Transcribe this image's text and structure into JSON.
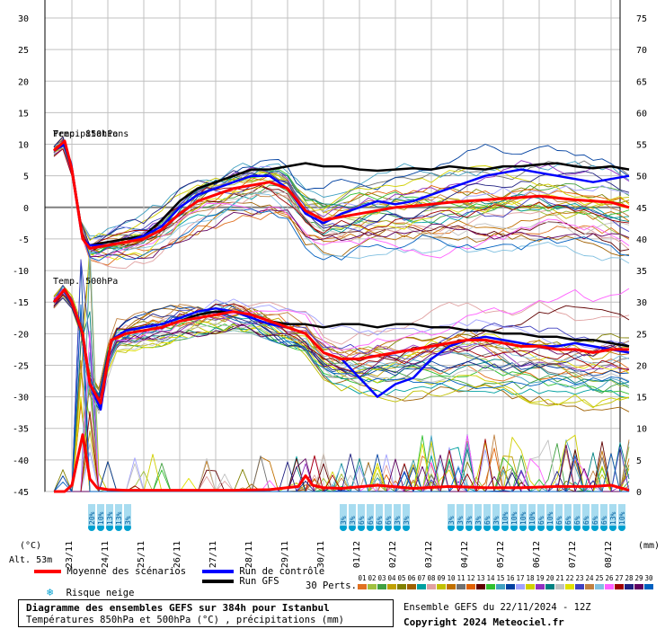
{
  "chart_data": {
    "type": "line",
    "title": "Diagramme des ensembles GEFS sur 384h pour Istanbul",
    "subtitle": "Températures 850hPa et 500hPa (°C) , précipitations (mm)",
    "left_axis": {
      "label": "(°C)",
      "ticks": [
        30,
        25,
        20,
        15,
        10,
        5,
        0,
        -5,
        -10,
        -15,
        -20,
        -25,
        -30,
        -35,
        -40,
        -45
      ],
      "range": [
        -45,
        30
      ]
    },
    "right_axis": {
      "label": "(mm)",
      "ticks": [
        75,
        70,
        65,
        60,
        55,
        50,
        45,
        40,
        35,
        30,
        25,
        20,
        15,
        10,
        5,
        0
      ],
      "range": [
        0,
        75
      ]
    },
    "x_ticks": [
      "23/11",
      "24/11",
      "25/11",
      "26/11",
      "27/11",
      "28/11",
      "29/11",
      "30/11",
      "01/12",
      "02/12",
      "03/12",
      "04/12",
      "05/12",
      "06/12",
      "07/12",
      "08/12"
    ],
    "grid": true,
    "series_labels": {
      "t850": "Temp. 850hPa",
      "t500": "Temp. 500hPa",
      "precip": "Precipitations"
    },
    "mean_850": {
      "x": [
        0,
        0.3,
        0.5,
        0.8,
        1.0,
        1.5,
        2,
        2.5,
        3,
        3.5,
        4,
        4.5,
        5,
        5.5,
        6,
        6.5,
        7,
        7.5,
        8,
        8.5,
        9,
        9.5,
        10,
        10.5,
        11,
        11.5,
        12,
        12.5,
        13,
        13.5,
        14,
        14.5,
        15,
        15.5,
        16
      ],
      "y": [
        9,
        10.5,
        6,
        -5,
        -6.5,
        -6,
        -5.5,
        -5,
        -3.5,
        -1,
        1,
        2,
        3,
        3.5,
        4,
        3,
        -0.5,
        -2,
        -1.5,
        -1,
        -0.5,
        0,
        0.2,
        0.5,
        0.8,
        1,
        1.2,
        1.4,
        1.6,
        1.8,
        1.5,
        1.2,
        1.0,
        0.8,
        0
      ]
    },
    "control_850": {
      "x": [
        0,
        0.3,
        0.5,
        0.8,
        1.0,
        1.5,
        2,
        2.5,
        3,
        3.5,
        4,
        4.5,
        5,
        5.5,
        6,
        6.5,
        7,
        7.5,
        8,
        8.5,
        9,
        9.5,
        10,
        10.5,
        11,
        11.5,
        12,
        12.5,
        13,
        13.5,
        14,
        14.5,
        15,
        15.5,
        16
      ],
      "y": [
        9,
        10,
        6,
        -5,
        -6,
        -6,
        -5.5,
        -4.5,
        -3,
        0,
        2,
        3,
        4,
        5,
        5,
        3,
        -1,
        -2.5,
        -1,
        0,
        1,
        0.5,
        1,
        2,
        3,
        4,
        5,
        5.5,
        6,
        5.5,
        5,
        4.5,
        4,
        4.5,
        5
      ]
    },
    "gfs_850": {
      "x": [
        0,
        0.3,
        0.5,
        0.8,
        1.0,
        1.5,
        2,
        2.5,
        3,
        3.5,
        4,
        4.5,
        5,
        5.5,
        6,
        6.5,
        7,
        7.5,
        8,
        8.5,
        9,
        9.5,
        10,
        10.5,
        11,
        11.5,
        12,
        12.5,
        13,
        13.5,
        14,
        14.5,
        15,
        15.5,
        16
      ],
      "y": [
        9,
        10,
        6,
        -5,
        -6,
        -5.5,
        -5,
        -4.5,
        -2,
        1,
        3,
        4,
        5,
        6,
        6,
        6.5,
        7,
        6.5,
        6.5,
        6,
        5.8,
        6,
        6.2,
        6,
        6.5,
        6.2,
        6,
        6.5,
        6.5,
        6.8,
        7,
        6.5,
        6.2,
        6.5,
        6
      ]
    },
    "mean_500": {
      "x": [
        0,
        0.3,
        0.5,
        0.8,
        1.0,
        1.3,
        1.6,
        2,
        2.5,
        3,
        3.5,
        4,
        4.5,
        5,
        5.5,
        6,
        6.5,
        7,
        7.5,
        8,
        8.5,
        9,
        9.5,
        10,
        10.5,
        11,
        11.5,
        12,
        12.5,
        13,
        13.5,
        14,
        14.5,
        15,
        15.5,
        16
      ],
      "y": [
        -15,
        -13,
        -15,
        -20,
        -28,
        -31,
        -21,
        -20,
        -19.5,
        -19,
        -18,
        -17.5,
        -17,
        -16.5,
        -17,
        -18,
        -19,
        -20,
        -23,
        -24,
        -24,
        -23.5,
        -23,
        -22.5,
        -22,
        -21.5,
        -21,
        -21,
        -21.5,
        -22,
        -22,
        -22.5,
        -22.5,
        -23,
        -22.5,
        -22.5
      ]
    },
    "control_500": {
      "x": [
        0,
        0.3,
        0.5,
        0.8,
        1.0,
        1.3,
        1.6,
        2,
        2.5,
        3,
        3.5,
        4,
        4.5,
        5,
        5.5,
        6,
        6.5,
        7,
        7.5,
        8,
        8.5,
        9,
        9.5,
        10,
        10.5,
        11,
        11.5,
        12,
        12.5,
        13,
        13.5,
        14,
        14.5,
        15,
        15.5,
        16
      ],
      "y": [
        -15,
        -13,
        -15,
        -20,
        -28,
        -32,
        -21,
        -19.5,
        -19,
        -18.5,
        -17.5,
        -16.5,
        -16,
        -16.5,
        -17.5,
        -18.5,
        -19,
        -20,
        -23,
        -24,
        -27,
        -30,
        -28,
        -27,
        -24,
        -22,
        -21,
        -20.5,
        -21,
        -21.5,
        -22,
        -22,
        -21.5,
        -22,
        -22.5,
        -23
      ]
    },
    "gfs_500": {
      "x": [
        0,
        0.3,
        0.5,
        0.8,
        1.0,
        1.3,
        1.6,
        2,
        2.5,
        3,
        3.5,
        4,
        4.5,
        5,
        5.5,
        6,
        6.5,
        7,
        7.5,
        8,
        8.5,
        9,
        9.5,
        10,
        10.5,
        11,
        11.5,
        12,
        12.5,
        13,
        13.5,
        14,
        14.5,
        15,
        15.5,
        16
      ],
      "y": [
        -15,
        -13,
        -15,
        -20,
        -28,
        -31,
        -21,
        -20,
        -19.5,
        -19,
        -18,
        -17,
        -16.5,
        -16.5,
        -17,
        -18,
        -18.5,
        -18.5,
        -19,
        -18.5,
        -18.5,
        -19,
        -18.5,
        -18.5,
        -19,
        -19,
        -19.5,
        -19.5,
        -20,
        -20,
        -20.5,
        -20.5,
        -21,
        -21,
        -21.5,
        -22
      ]
    },
    "mean_precip": {
      "x": [
        0,
        0.3,
        0.5,
        0.8,
        1.0,
        1.2,
        1.5,
        2,
        3,
        4,
        5,
        6,
        6.8,
        7,
        7.2,
        7.5,
        8,
        9,
        10,
        11,
        12,
        13,
        14,
        15,
        15.5,
        16
      ],
      "y": [
        0,
        0,
        1,
        9,
        2,
        0.6,
        0.3,
        0.2,
        0.2,
        0.2,
        0.2,
        0.3,
        0.8,
        2.5,
        1,
        0.6,
        0.5,
        1,
        0.5,
        0.8,
        0.6,
        0.6,
        0.8,
        0.8,
        1,
        0.2
      ]
    },
    "ensemble_850_envelope": {
      "upper": [
        9.5,
        11,
        10,
        -3,
        -5,
        -4,
        -3,
        -1,
        2,
        4,
        6,
        7,
        7,
        5,
        4,
        6,
        6,
        6,
        7,
        8,
        8,
        8,
        9,
        9.5,
        9,
        9
      ],
      "lower": [
        8,
        9,
        -4,
        -7,
        -8,
        -8,
        -7.5,
        -7,
        -6,
        -3,
        -2,
        -1,
        -2,
        -6,
        -7,
        -8,
        -9,
        -9,
        -9,
        -9,
        -10,
        -10,
        -11,
        -10,
        -9,
        -10
      ]
    },
    "snow_risk": [
      {
        "x": 1.0,
        "pct": "20%"
      },
      {
        "x": 1.25,
        "pct": "10%"
      },
      {
        "x": 1.5,
        "pct": "13%"
      },
      {
        "x": 1.75,
        "pct": "13%"
      },
      {
        "x": 2.0,
        "pct": "3%"
      },
      {
        "x": 8.0,
        "pct": "3%"
      },
      {
        "x": 8.25,
        "pct": "3%"
      },
      {
        "x": 8.5,
        "pct": "6%"
      },
      {
        "x": 8.75,
        "pct": "6%"
      },
      {
        "x": 9.0,
        "pct": "6%"
      },
      {
        "x": 9.25,
        "pct": "6%"
      },
      {
        "x": 9.5,
        "pct": "3%"
      },
      {
        "x": 9.75,
        "pct": "3%"
      },
      {
        "x": 11.0,
        "pct": "3%"
      },
      {
        "x": 11.25,
        "pct": "3%"
      },
      {
        "x": 11.5,
        "pct": "3%"
      },
      {
        "x": 11.75,
        "pct": "3%"
      },
      {
        "x": 12.0,
        "pct": "6%"
      },
      {
        "x": 12.25,
        "pct": "3%"
      },
      {
        "x": 12.5,
        "pct": "10%"
      },
      {
        "x": 12.75,
        "pct": "10%"
      },
      {
        "x": 13.0,
        "pct": "10%"
      },
      {
        "x": 13.25,
        "pct": "10%"
      },
      {
        "x": 13.5,
        "pct": "6%"
      },
      {
        "x": 13.75,
        "pct": "10%"
      },
      {
        "x": 14.0,
        "pct": "6%"
      },
      {
        "x": 14.25,
        "pct": "6%"
      },
      {
        "x": 14.5,
        "pct": "6%"
      },
      {
        "x": 14.75,
        "pct": "6%"
      },
      {
        "x": 15.0,
        "pct": "6%"
      },
      {
        "x": 15.25,
        "pct": "6%"
      },
      {
        "x": 15.5,
        "pct": "13%"
      },
      {
        "x": 15.75,
        "pct": "10%"
      }
    ],
    "colors": {
      "mean": "#ff0000",
      "control": "#0000ff",
      "gfs": "#000000",
      "snow": "#00a0d0"
    }
  },
  "labels": {
    "alt": "Alt. 53m",
    "unit_left": "(°C)",
    "unit_right": "(mm)",
    "legend_mean": "Moyenne des scénarios",
    "legend_control": "Run de contrôle",
    "legend_gfs": "Run GFS",
    "legend_snow": "Risque neige",
    "perts": "30 Perts.",
    "pert_numbers": [
      "01",
      "02",
      "03",
      "04",
      "05",
      "06",
      "07",
      "08",
      "09",
      "10",
      "11",
      "12",
      "13",
      "14",
      "15",
      "16",
      "17",
      "18",
      "19",
      "20",
      "21",
      "22",
      "23",
      "24",
      "25",
      "26",
      "27",
      "28",
      "29",
      "30"
    ],
    "pert_colors": [
      "#e07020",
      "#a0c040",
      "#40a040",
      "#c0a000",
      "#808000",
      "#a06000",
      "#00a0a0",
      "#e0a0a0",
      "#c0c000",
      "#c07000",
      "#707070",
      "#e06000",
      "#600000",
      "#30c030",
      "#40a0c0",
      "#0040a0",
      "#a0a0ff",
      "#d0d000",
      "#9030c0",
      "#008080",
      "#c0c0c0",
      "#e0e000",
      "#4040c0",
      "#c08040",
      "#80c0e0",
      "#ff60ff",
      "#a00000",
      "#202080",
      "#600060",
      "#0060c0"
    ],
    "box_line1": "Diagramme des ensembles GEFS sur 384h pour Istanbul",
    "box_line2": "Températures 850hPa et 500hPa (°C) , précipitations (mm)",
    "run_info": "Ensemble GEFS du 22/11/2024 - 12Z",
    "copyright": "Copyright 2024 Meteociel.fr"
  }
}
